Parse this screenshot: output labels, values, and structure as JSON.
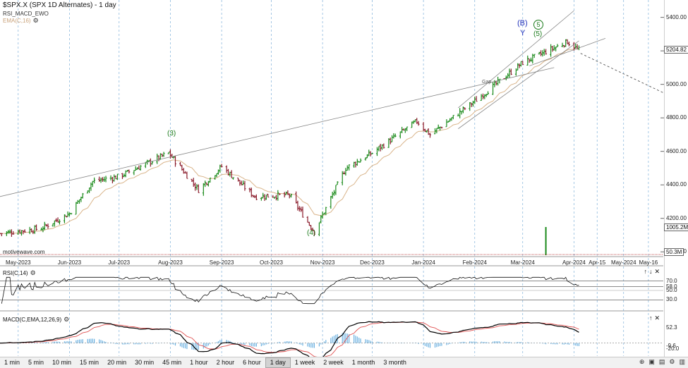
{
  "header": {
    "title": "$SPX.X (SPX 1D Alternates) - 1 day",
    "study": "RSI_MACD_EWO",
    "ema_label": "EMA(C,16)"
  },
  "watermark": "motivewave.com",
  "price_axis": {
    "ticks": [
      "5400.00",
      "5200.00",
      "5000.00",
      "4800.00",
      "4600.00",
      "4400.00",
      "4200.00",
      "4000.00"
    ],
    "last_price": "5204.82",
    "volume_high": "1005.2M",
    "volume_low": "50.3M"
  },
  "time_axis": [
    "May-2023",
    "Jun-2023",
    "Jul-2023",
    "Aug-2023",
    "Sep-2023",
    "Oct-2023",
    "Nov-2023",
    "Dec-2023",
    "Jan-2024",
    "Feb-2024",
    "Mar-2024",
    "Apr-2024",
    "Apr-15",
    "May-2024",
    "May-16"
  ],
  "annotations": {
    "wave3": "(3)",
    "wave4": "(4)",
    "waveB": "(B)",
    "waveY": "Y",
    "wave5_circle": "5",
    "wave5_paren": "(5)",
    "gap": "Gap"
  },
  "rsi_pane": {
    "title": "RSI(C,14)",
    "ticks": [
      "70.0",
      "58.0",
      "50.0",
      "30.0"
    ]
  },
  "macd_pane": {
    "title": "MACD(C,EMA,12,26,9)",
    "ticks": [
      "52.3",
      "-9.6",
      "-20.0"
    ]
  },
  "pane_controls": {
    "up": "↑",
    "down": "↓",
    "close": "✕"
  },
  "timeframes": [
    "1 min",
    "5 min",
    "10 min",
    "15 min",
    "20 min",
    "30 min",
    "45 min",
    "1 hour",
    "2 hour",
    "6 hour",
    "1 day",
    "1 week",
    "2 week",
    "1 month",
    "3 month"
  ],
  "active_timeframe": "1 day",
  "colors": {
    "up": "#1a8a1a",
    "down": "#8a1a2a",
    "ema": "#d9b48a",
    "grid": "#7fb0d9",
    "macd": "#000000",
    "signal": "#e05050",
    "hist": "#6ab0e0"
  },
  "chart_data": {
    "type": "ohlc",
    "title": "$SPX.X (SPX 1D Alternates) - 1 day",
    "y_range": [
      3980,
      5470
    ],
    "x_range": [
      "2023-04-20",
      "2024-05-25"
    ],
    "anchor_closes": [
      {
        "date": "2023-04-20",
        "close": 4110
      },
      {
        "date": "2023-05-15",
        "close": 4140
      },
      {
        "date": "2023-06-01",
        "close": 4230
      },
      {
        "date": "2023-06-15",
        "close": 4420
      },
      {
        "date": "2023-07-01",
        "close": 4450
      },
      {
        "date": "2023-07-31",
        "close": 4590
      },
      {
        "date": "2023-08-18",
        "close": 4370
      },
      {
        "date": "2023-09-01",
        "close": 4510
      },
      {
        "date": "2023-09-21",
        "close": 4330
      },
      {
        "date": "2023-10-12",
        "close": 4340
      },
      {
        "date": "2023-10-27",
        "close": 4120
      },
      {
        "date": "2023-11-15",
        "close": 4500
      },
      {
        "date": "2023-12-01",
        "close": 4590
      },
      {
        "date": "2023-12-28",
        "close": 4780
      },
      {
        "date": "2024-01-05",
        "close": 4700
      },
      {
        "date": "2024-02-01",
        "close": 4900
      },
      {
        "date": "2024-03-01",
        "close": 5130
      },
      {
        "date": "2024-03-28",
        "close": 5255
      },
      {
        "date": "2024-04-04",
        "close": 5204
      }
    ],
    "rsi_range": [
      20,
      80
    ],
    "macd_range": [
      -40,
      70
    ]
  }
}
